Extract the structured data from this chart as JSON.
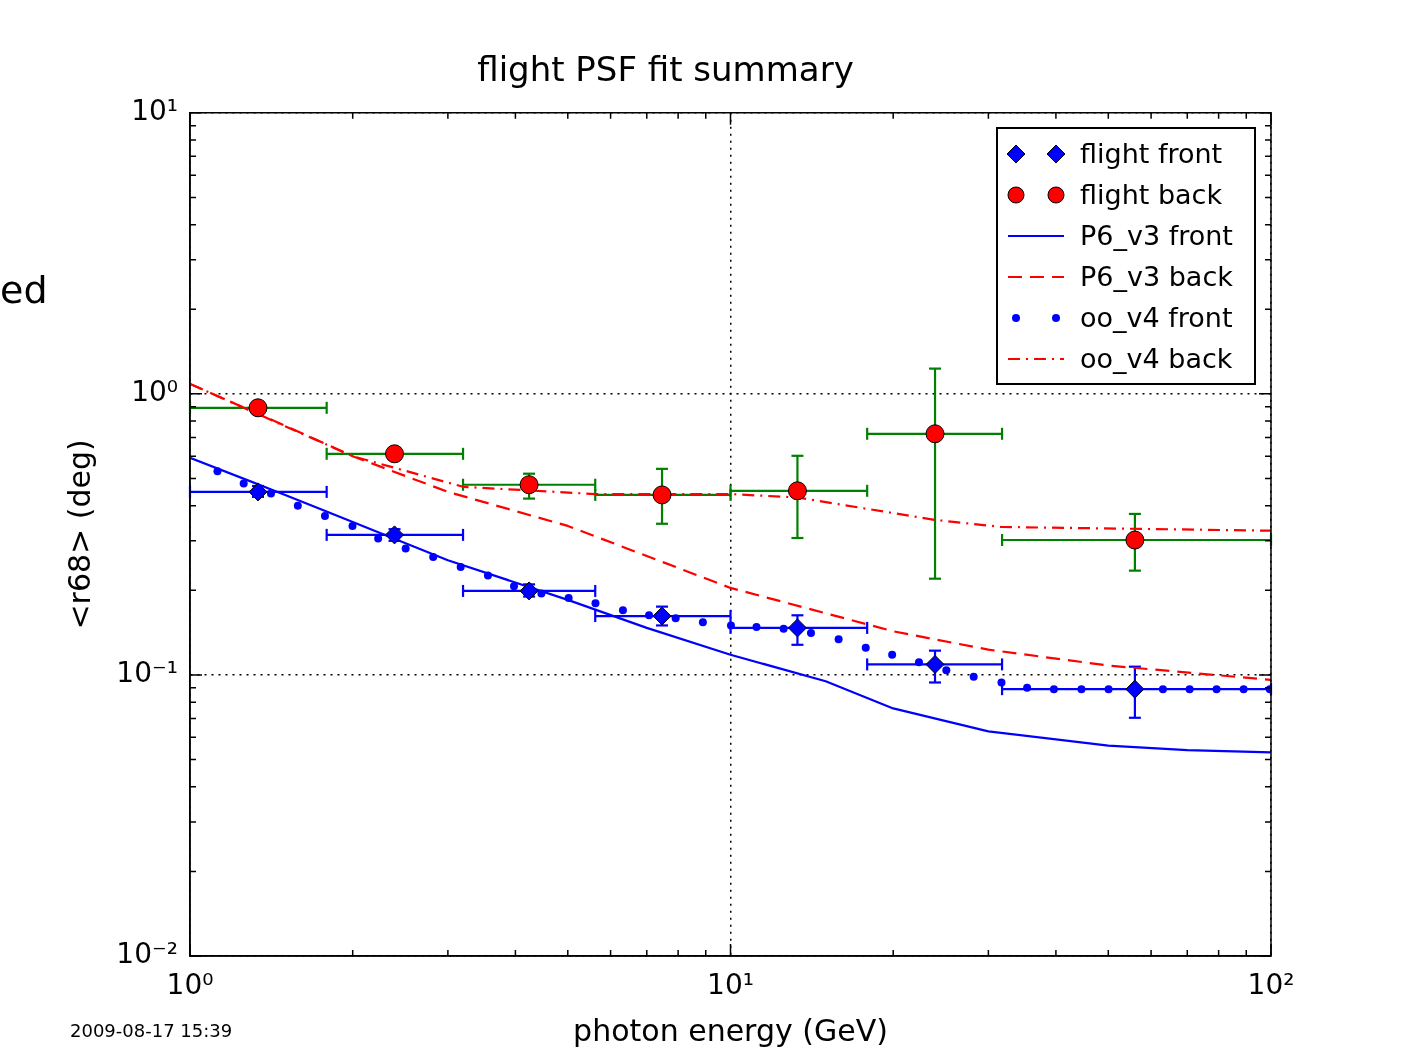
{
  "chart_data": {
    "type": "scatter",
    "title": "flight PSF fit summary",
    "xlabel": "photon energy (GeV)",
    "ylabel": "<r68> (deg)",
    "log": "xy",
    "grid": true,
    "legend": "top right",
    "xlim": [
      1,
      100
    ],
    "ylim": [
      0.01,
      10
    ],
    "xticks": [
      {
        "value": 1,
        "label": "10⁰"
      },
      {
        "value": 2,
        "label": null
      },
      {
        "value": 3,
        "label": null
      },
      {
        "value": 4,
        "label": null
      },
      {
        "value": 5,
        "label": null
      },
      {
        "value": 6,
        "label": null
      },
      {
        "value": 7,
        "label": null
      },
      {
        "value": 8,
        "label": null
      },
      {
        "value": 9,
        "label": null
      },
      {
        "value": 10,
        "label": "10¹"
      },
      {
        "value": 20,
        "label": null
      },
      {
        "value": 30,
        "label": null
      },
      {
        "value": 40,
        "label": null
      },
      {
        "value": 50,
        "label": null
      },
      {
        "value": 60,
        "label": null
      },
      {
        "value": 70,
        "label": null
      },
      {
        "value": 80,
        "label": null
      },
      {
        "value": 90,
        "label": null
      },
      {
        "value": 100,
        "label": "10²"
      }
    ],
    "yticks": [
      {
        "value": 0.01,
        "label": "10⁻²"
      },
      {
        "value": 0.02,
        "label": null
      },
      {
        "value": 0.03,
        "label": null
      },
      {
        "value": 0.04,
        "label": null
      },
      {
        "value": 0.05,
        "label": null
      },
      {
        "value": 0.06,
        "label": null
      },
      {
        "value": 0.07,
        "label": null
      },
      {
        "value": 0.08,
        "label": null
      },
      {
        "value": 0.09,
        "label": null
      },
      {
        "value": 0.1,
        "label": "10⁻¹"
      },
      {
        "value": 0.2,
        "label": null
      },
      {
        "value": 0.3,
        "label": null
      },
      {
        "value": 0.4,
        "label": null
      },
      {
        "value": 0.5,
        "label": null
      },
      {
        "value": 0.6,
        "label": null
      },
      {
        "value": 0.7,
        "label": null
      },
      {
        "value": 0.8,
        "label": null
      },
      {
        "value": 0.9,
        "label": null
      },
      {
        "value": 1,
        "label": "10⁰"
      },
      {
        "value": 2,
        "label": null
      },
      {
        "value": 3,
        "label": null
      },
      {
        "value": 4,
        "label": null
      },
      {
        "value": 5,
        "label": null
      },
      {
        "value": 6,
        "label": null
      },
      {
        "value": 7,
        "label": null
      },
      {
        "value": 8,
        "label": null
      },
      {
        "value": 9,
        "label": null
      },
      {
        "value": 10,
        "label": "10¹"
      }
    ],
    "series": [
      {
        "name": "flight front",
        "marker": "diamond",
        "color": "#0000ff",
        "x": [
          1.336,
          2.39,
          4.24,
          7.47,
          13.3,
          23.9,
          56.0
        ],
        "values": [
          0.448,
          0.315,
          0.199,
          0.162,
          0.147,
          0.109,
          0.089
        ],
        "xerrors": [
          [
            1.0,
            1.79
          ],
          [
            1.79,
            3.2
          ],
          [
            3.2,
            5.62
          ],
          [
            5.62,
            10
          ],
          [
            10,
            17.9
          ],
          [
            17.9,
            31.8
          ],
          [
            31.8,
            100
          ]
        ],
        "errors": [
          [
            0.43,
            0.47
          ],
          [
            0.3,
            0.33
          ],
          [
            0.19,
            0.21
          ],
          [
            0.15,
            0.175
          ],
          [
            0.128,
            0.163
          ],
          [
            0.094,
            0.122
          ],
          [
            0.0704,
            0.107
          ]
        ]
      },
      {
        "name": "flight back",
        "marker": "circle",
        "color": "#008000",
        "colors": [
          "#ff0000",
          "#ff0000",
          "#ff0000",
          "#ff0000",
          "#ff0000",
          "#ff0000",
          "#ff0000"
        ],
        "x": [
          1.336,
          2.39,
          4.24,
          7.47,
          13.3,
          23.9,
          56.0
        ],
        "values": [
          0.892,
          0.612,
          0.475,
          0.437,
          0.452,
          0.721,
          0.302
        ],
        "xerrors": [
          [
            1.0,
            1.79
          ],
          [
            1.79,
            3.2
          ],
          [
            3.2,
            5.62
          ],
          [
            5.62,
            10
          ],
          [
            10,
            17.9
          ],
          [
            17.9,
            31.8
          ],
          [
            31.8,
            100
          ]
        ],
        "errors": [
          null,
          null,
          [
            0.424,
            0.52
          ],
          [
            0.345,
            0.541
          ],
          [
            0.307,
            0.602
          ],
          [
            0.22,
            1.23
          ],
          [
            0.235,
            0.374
          ]
        ]
      },
      {
        "name": "P6_v3 front",
        "type": "line",
        "marker": "none",
        "line_style": "solid",
        "color": "#0000ff",
        "x": [
          1,
          1.5,
          2,
          3,
          5,
          7,
          10,
          15,
          20,
          30,
          50,
          70,
          100
        ],
        "values": [
          0.592,
          0.437,
          0.35,
          0.256,
          0.185,
          0.147,
          0.118,
          0.095,
          0.076,
          0.063,
          0.056,
          0.054,
          0.053
        ]
      },
      {
        "name": "P6_v3 back",
        "type": "line",
        "marker": "none",
        "line_style": "dashed",
        "color": "#ff0000",
        "x": [
          1,
          1.5,
          2,
          3,
          5,
          10,
          20,
          30,
          50,
          100
        ],
        "values": [
          1.085,
          0.77,
          0.6,
          0.448,
          0.339,
          0.204,
          0.143,
          0.123,
          0.108,
          0.096
        ]
      },
      {
        "name": "oo_v4 front",
        "marker": "circle",
        "color": "#0000ff",
        "x": [
          1.124,
          1.257,
          1.412,
          1.583,
          1.777,
          1.998,
          2.229,
          2.506,
          2.818,
          3.168,
          3.558,
          3.976,
          4.468,
          5.018,
          5.626,
          6.324,
          7.068,
          7.917,
          8.89,
          10.02,
          11.17,
          12.54,
          14.09,
          15.85,
          17.79,
          19.91,
          22.32,
          25.08,
          28.18,
          31.72,
          35.38,
          39.66,
          44.6,
          50.06,
          63.1,
          70.7,
          79.3,
          89.0,
          99.5
        ],
        "values": [
          0.53,
          0.48,
          0.442,
          0.4,
          0.368,
          0.339,
          0.306,
          0.282,
          0.263,
          0.242,
          0.226,
          0.207,
          0.195,
          0.188,
          0.18,
          0.17,
          0.163,
          0.159,
          0.154,
          0.15,
          0.148,
          0.146,
          0.141,
          0.134,
          0.125,
          0.118,
          0.111,
          0.104,
          0.0985,
          0.094,
          0.09,
          0.089,
          0.089,
          0.089,
          0.089,
          0.089,
          0.089,
          0.089,
          0.089
        ]
      },
      {
        "name": "oo_v4 back",
        "type": "line",
        "marker": "none",
        "line_style": "dashdot",
        "color": "#ff0000",
        "x": [
          1,
          2,
          3.2,
          5.62,
          10,
          13.3,
          23.9,
          31.8,
          100
        ],
        "values": [
          1.085,
          0.6,
          0.467,
          0.44,
          0.44,
          0.428,
          0.356,
          0.336,
          0.326
        ]
      }
    ],
    "annotations": [
      "2009-08-17 15:39",
      "ed"
    ]
  }
}
